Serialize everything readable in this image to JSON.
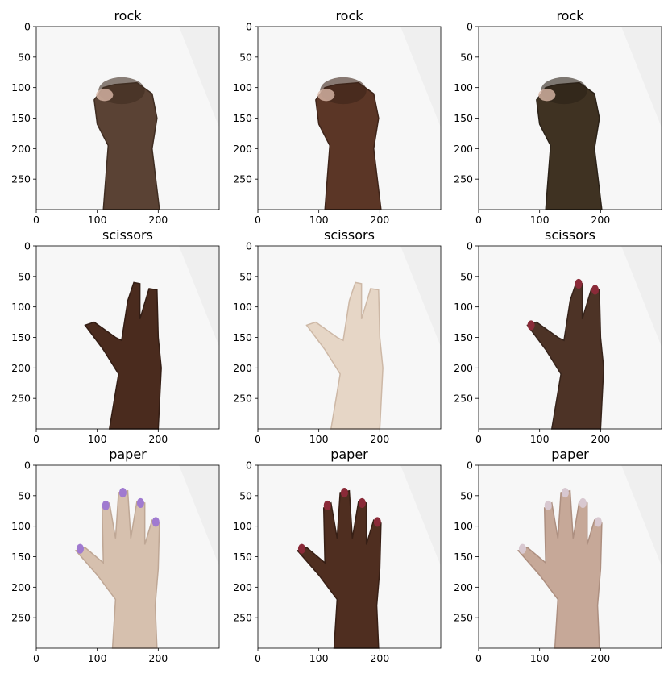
{
  "figure": {
    "panels": [
      {
        "title": "rock",
        "x_ticks": [
          "0",
          "100",
          "200"
        ],
        "y_ticks": [
          "0",
          "50",
          "100",
          "150",
          "200",
          "250"
        ],
        "hand": {
          "skin": "#5a4234",
          "shade": "#3f2d22",
          "gesture": "rock"
        }
      },
      {
        "title": "rock",
        "x_ticks": [
          "0",
          "100",
          "200"
        ],
        "y_ticks": [
          "0",
          "50",
          "100",
          "150",
          "200",
          "250"
        ],
        "hand": {
          "skin": "#5b3626",
          "shade": "#3e2419",
          "gesture": "rock"
        }
      },
      {
        "title": "rock",
        "x_ticks": [
          "0",
          "100",
          "200"
        ],
        "y_ticks": [
          "0",
          "50",
          "100",
          "150",
          "200",
          "250"
        ],
        "hand": {
          "skin": "#3f3222",
          "shade": "#2b2218",
          "gesture": "rock"
        }
      },
      {
        "title": "scissors",
        "x_ticks": [
          "0",
          "100",
          "200"
        ],
        "y_ticks": [
          "0",
          "50",
          "100",
          "150",
          "200",
          "250"
        ],
        "hand": {
          "skin": "#4a2b1e",
          "shade": "#331d14",
          "gesture": "scissors"
        }
      },
      {
        "title": "scissors",
        "x_ticks": [
          "0",
          "100",
          "200"
        ],
        "y_ticks": [
          "0",
          "50",
          "100",
          "150",
          "200",
          "250"
        ],
        "hand": {
          "skin": "#e6d6c6",
          "shade": "#cdb8a6",
          "gesture": "scissors"
        }
      },
      {
        "title": "scissors",
        "x_ticks": [
          "0",
          "100",
          "200"
        ],
        "y_ticks": [
          "0",
          "50",
          "100",
          "150",
          "200",
          "250"
        ],
        "hand": {
          "skin": "#4d3326",
          "shade": "#36231a",
          "gesture": "scissors",
          "nail": "#8a2a38"
        }
      },
      {
        "title": "paper",
        "x_ticks": [
          "0",
          "100",
          "200"
        ],
        "y_ticks": [
          "0",
          "50",
          "100",
          "150",
          "200",
          "250"
        ],
        "hand": {
          "skin": "#d6c0ae",
          "shade": "#bfa795",
          "gesture": "paper",
          "nail": "#a07ad0"
        }
      },
      {
        "title": "paper",
        "x_ticks": [
          "0",
          "100",
          "200"
        ],
        "y_ticks": [
          "0",
          "50",
          "100",
          "150",
          "200",
          "250"
        ],
        "hand": {
          "skin": "#4f2e20",
          "shade": "#371f15",
          "gesture": "paper",
          "nail": "#8a2a38"
        }
      },
      {
        "title": "paper",
        "x_ticks": [
          "0",
          "100",
          "200"
        ],
        "y_ticks": [
          "0",
          "50",
          "100",
          "150",
          "200",
          "250"
        ],
        "hand": {
          "skin": "#c6a898",
          "shade": "#ad8f80",
          "gesture": "paper",
          "nail": "#d8c8d0"
        }
      }
    ]
  }
}
